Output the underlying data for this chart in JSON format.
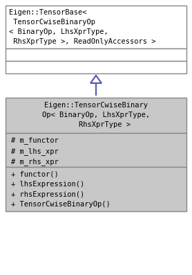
{
  "bg_color": "#ffffff",
  "box_border_color": "#888888",
  "box_fill_white": "#ffffff",
  "box_fill_gray": "#c8c8c8",
  "arrow_color": "#5555aa",
  "text_color": "#000000",
  "font_size": 7.5,
  "parent": {
    "title_lines": [
      "Eigen::TensorBase<",
      " TensorCwiseBinaryOp",
      "< BinaryOp, LhsXprType,",
      " RhsXprType >, ReadOnlyAccessors >"
    ],
    "attr_lines": [],
    "method_lines": []
  },
  "child": {
    "title_lines": [
      "Eigen::TensorCwiseBinary",
      "Op< BinaryOp, LhsXprType,",
      "    RhsXprType >"
    ],
    "attr_lines": [
      "# m_functor",
      "# m_lhs_xpr",
      "# m_rhs_xpr"
    ],
    "method_lines": [
      "+ functor()",
      "+ lhsExpression()",
      "+ rhsExpression()",
      "+ TensorCwiseBinaryOp()"
    ]
  }
}
